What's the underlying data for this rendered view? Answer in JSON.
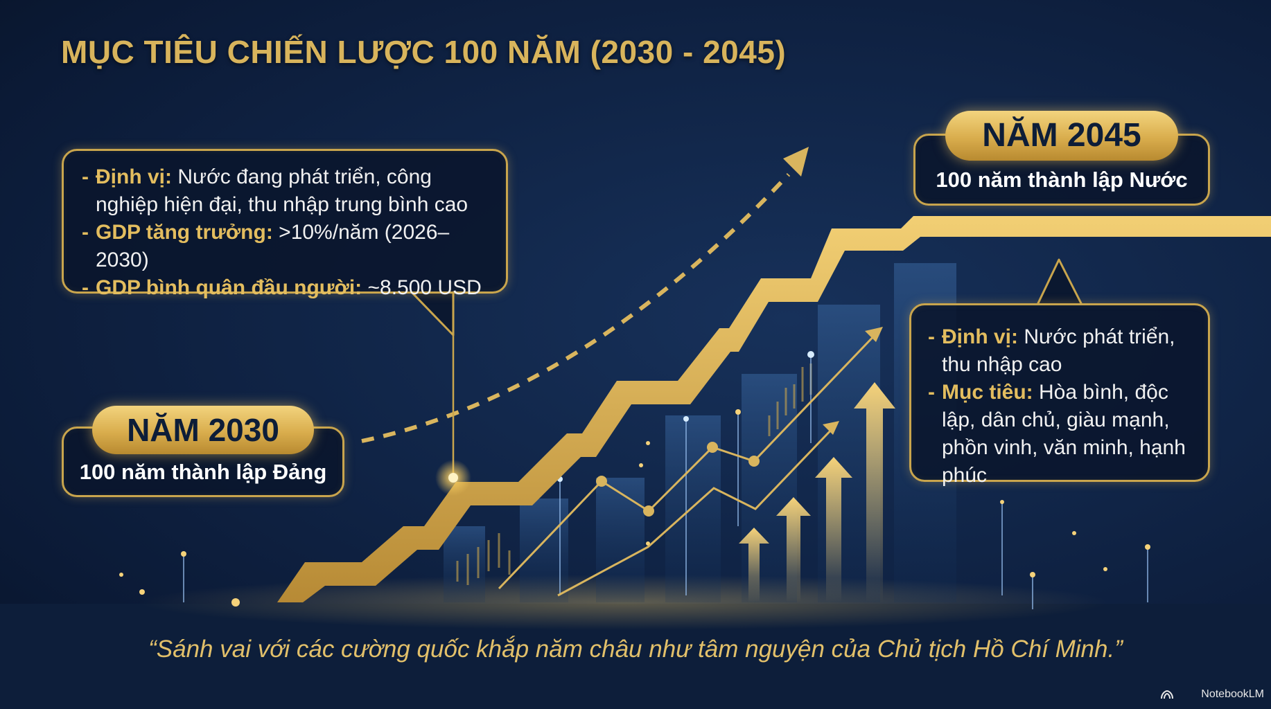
{
  "title": "MỤC TIÊU CHIẾN LƯỢC 100 NĂM (2030 - 2045)",
  "milestone_2030": {
    "year": "NĂM 2030",
    "subtitle": "100 năm thành lập Đảng",
    "items": [
      {
        "key": "Định vị:",
        "text": "Nước đang phát triển, công nghiệp hiện đại, thu nhập trung bình cao"
      },
      {
        "key": "GDP tăng trưởng:",
        "text": ">10%/năm (2026–2030)"
      },
      {
        "key": "GDP bình quân đầu người:",
        "text": "~8.500 USD"
      }
    ]
  },
  "milestone_2045": {
    "year": "NĂM 2045",
    "subtitle": "100 năm thành lập Nước",
    "items": [
      {
        "key": "Định vị:",
        "text": "Nước phát triển, thu nhập cao"
      },
      {
        "key": "Mục tiêu:",
        "text": "Hòa bình, độc lập, dân chủ, giàu mạnh, phồn vinh, văn minh, hạnh phúc"
      }
    ]
  },
  "quote": "“Sánh vai với các cường quốc khắp năm châu như tâm nguyện của Chủ tịch Hồ Chí Minh.”",
  "watermark": "NotebookLM",
  "colors": {
    "gold": "#d8b45c",
    "bright_gold": "#f3d47e",
    "navy": "#102446",
    "text": "#f1f1f1"
  }
}
